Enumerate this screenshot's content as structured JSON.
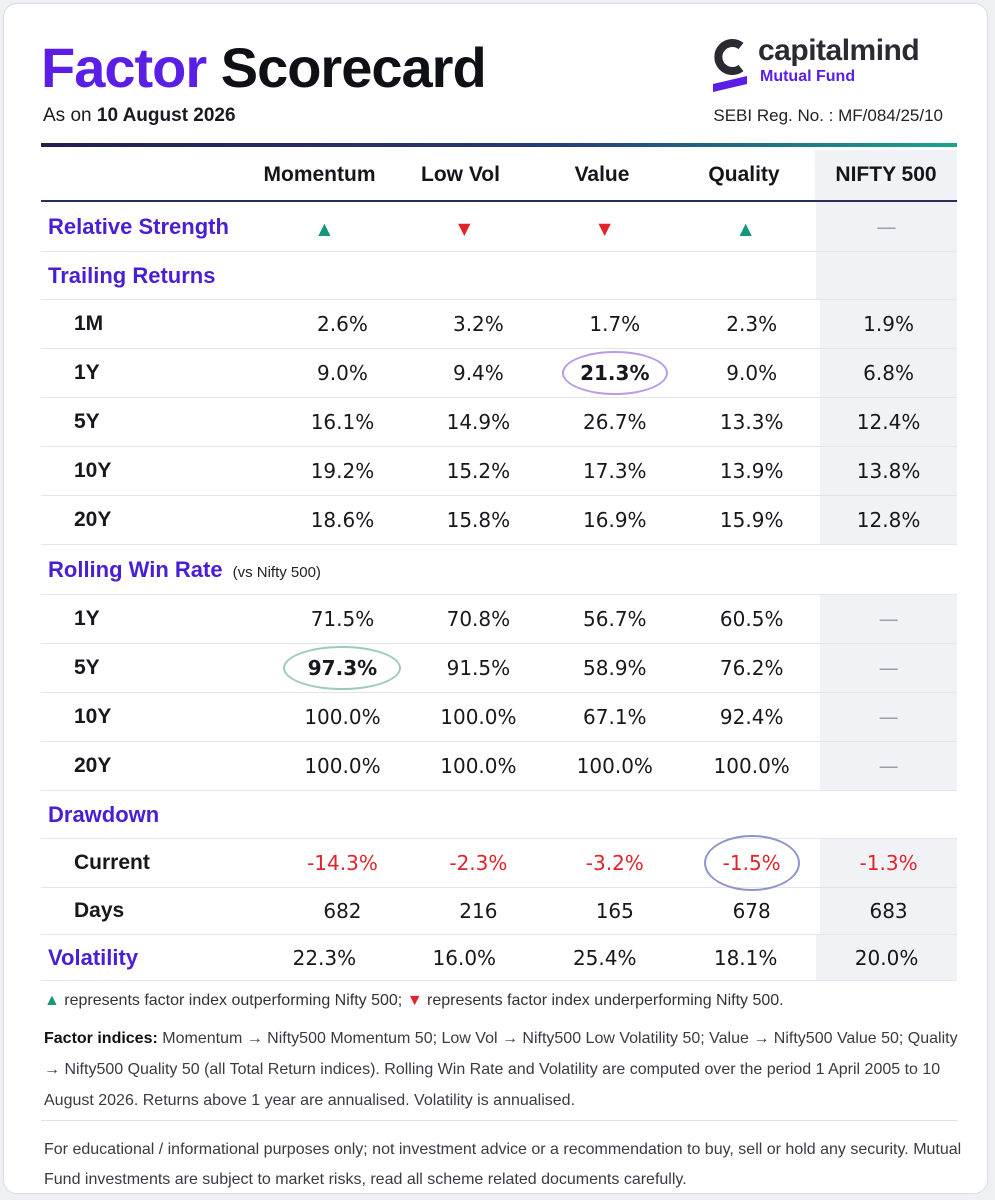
{
  "header": {
    "title_part1": "Factor",
    "title_part2": "Scorecard",
    "as_on_prefix": "As on",
    "as_on_date": "10 August 2026",
    "brand_name": "capitalmind",
    "brand_sub": "Mutual Fund",
    "sebi": "SEBI Reg. No. : MF/084/25/10"
  },
  "columns": [
    "Momentum",
    "Low Vol",
    "Value",
    "Quality",
    "NIFTY 500"
  ],
  "relative_strength": {
    "label": "Relative Strength",
    "values": [
      "▲",
      "▼",
      "▼",
      "▲",
      "—"
    ],
    "directions": [
      "up",
      "down",
      "down",
      "up",
      "none"
    ]
  },
  "trailing_returns": {
    "label": "Trailing Returns",
    "rows": [
      {
        "period": "1M",
        "values": [
          "2.6%",
          "3.2%",
          "1.7%",
          "2.3%",
          "1.9%"
        ]
      },
      {
        "period": "1Y",
        "values": [
          "9.0%",
          "9.4%",
          "21.3%",
          "9.0%",
          "6.8%"
        ]
      },
      {
        "period": "5Y",
        "values": [
          "16.1%",
          "14.9%",
          "26.7%",
          "13.3%",
          "12.4%"
        ]
      },
      {
        "period": "10Y",
        "values": [
          "19.2%",
          "15.2%",
          "17.3%",
          "13.9%",
          "13.8%"
        ]
      },
      {
        "period": "20Y",
        "values": [
          "18.6%",
          "15.8%",
          "16.9%",
          "15.9%",
          "12.8%"
        ]
      }
    ]
  },
  "rolling_win_rate": {
    "label": "Rolling Win Rate",
    "note": "(vs Nifty 500)",
    "rows": [
      {
        "period": "1Y",
        "values": [
          "71.5%",
          "70.8%",
          "56.7%",
          "60.5%",
          "—"
        ]
      },
      {
        "period": "5Y",
        "values": [
          "97.3%",
          "91.5%",
          "58.9%",
          "76.2%",
          "—"
        ]
      },
      {
        "period": "10Y",
        "values": [
          "100.0%",
          "100.0%",
          "67.1%",
          "92.4%",
          "—"
        ]
      },
      {
        "period": "20Y",
        "values": [
          "100.0%",
          "100.0%",
          "100.0%",
          "100.0%",
          "—"
        ]
      }
    ]
  },
  "drawdown": {
    "label": "Drawdown",
    "rows": [
      {
        "period": "Current",
        "values": [
          "-14.3%",
          "-2.3%",
          "-3.2%",
          "-1.5%",
          "-1.3%"
        ]
      },
      {
        "period": "Days",
        "values": [
          "682",
          "216",
          "165",
          "678",
          "683"
        ]
      }
    ]
  },
  "volatility": {
    "label": "Volatility",
    "values": [
      "22.3%",
      "16.0%",
      "25.4%",
      "18.1%",
      "20.0%"
    ]
  },
  "footer": {
    "legend_up_text": "represents factor index outperforming Nifty 500;",
    "legend_down_text": "represents factor index underperforming Nifty 500.",
    "notes_bold": "Factor indices:",
    "notes_text": "Momentum → Nifty500 Momentum 50; Low Vol → Nifty500 Low Volatility 50; Value → Nifty500 Value 50; Quality → Nifty500 Quality 50 (all Total Return indices). Rolling Win Rate and Volatility are computed over the period 1 April 2005 to 10 August 2026. Returns above 1 year are annualised. Volatility is annualised.",
    "disclaimer": "For educational / informational purposes only; not investment advice or a recommendation to buy, sell or hold any security. Mutual Fund investments are subject to market risks, read all scheme related documents carefully."
  },
  "colors": {
    "brand_purple": "#5a1ee6",
    "section_purple": "#4a1fd4",
    "up_green": "#16967a",
    "down_red": "#e2232a"
  }
}
